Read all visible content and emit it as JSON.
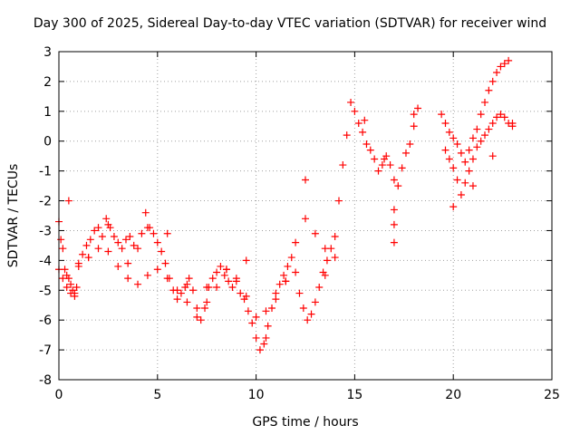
{
  "chart_data": {
    "type": "scatter",
    "title": "Day 300 of 2025, Sidereal Day-to-day VTEC variation (SDTVAR) for receiver wind",
    "xlabel": "GPS time / hours",
    "ylabel": "SDTVAR / TECUs",
    "xlim": [
      0,
      25
    ],
    "ylim": [
      -8,
      3
    ],
    "xticks": [
      0,
      5,
      10,
      15,
      20,
      25
    ],
    "yticks": [
      -8,
      -7,
      -6,
      -5,
      -4,
      -3,
      -2,
      -1,
      0,
      1,
      2,
      3
    ],
    "grid": true,
    "marker": "plus",
    "marker_color": "#ff0000",
    "series": [
      {
        "name": "SDTVAR",
        "x": [
          0.0,
          0.1,
          0.2,
          0.3,
          0.4,
          0.5,
          0.6,
          0.7,
          0.8,
          0.9,
          1.0,
          1.2,
          1.4,
          1.6,
          1.8,
          2.0,
          2.2,
          2.4,
          2.6,
          2.8,
          3.0,
          3.2,
          3.4,
          3.6,
          3.8,
          4.0,
          4.2,
          4.4,
          4.6,
          4.8,
          5.0,
          5.2,
          5.4,
          5.6,
          5.8,
          6.0,
          6.2,
          6.4,
          6.6,
          6.8,
          7.0,
          7.2,
          7.4,
          7.6,
          7.8,
          8.0,
          8.2,
          8.4,
          8.6,
          8.8,
          9.0,
          9.2,
          9.4,
          9.6,
          9.8,
          10.0,
          10.2,
          10.4,
          10.6,
          10.8,
          11.0,
          11.2,
          11.4,
          11.6,
          11.8,
          12.0,
          12.2,
          12.4,
          12.6,
          12.8,
          13.0,
          13.2,
          13.4,
          13.6,
          13.8,
          14.0,
          14.2,
          14.4,
          14.6,
          14.8,
          15.0,
          15.2,
          15.4,
          15.6,
          15.8,
          16.0,
          16.2,
          16.4,
          16.6,
          16.8,
          17.0,
          17.2,
          17.4,
          17.6,
          17.8,
          18.0,
          18.2,
          19.4,
          19.6,
          19.8,
          20.0,
          20.2,
          20.4,
          20.6,
          20.8,
          21.0,
          21.2,
          21.4,
          21.6,
          21.8,
          22.0,
          22.2,
          22.4,
          22.6,
          22.8,
          23.0,
          0.0,
          0.2,
          0.4,
          0.6,
          0.8,
          1.0,
          1.5,
          2.0,
          2.5,
          3.0,
          3.5,
          4.0,
          4.5,
          5.0,
          5.5,
          6.0,
          6.5,
          7.0,
          7.5,
          8.0,
          8.5,
          9.0,
          9.5,
          10.0,
          10.5,
          11.0,
          11.5,
          12.0,
          12.5,
          13.0,
          13.5,
          14.0,
          19.6,
          19.8,
          20.0,
          20.2,
          20.4,
          20.6,
          20.8,
          21.0,
          21.2,
          21.4,
          21.6,
          21.8,
          22.0,
          22.2,
          22.4,
          22.6,
          22.8,
          23.0,
          0.5,
          1.5,
          2.5,
          3.5,
          4.5,
          5.5,
          6.5,
          7.5,
          8.5,
          9.5,
          10.5,
          11.5,
          12.5,
          13.5,
          15.5,
          16.5,
          17.0,
          17.0,
          17.0,
          18.0,
          20.0,
          21.0,
          22.0
        ],
        "y": [
          -2.7,
          -3.3,
          -3.6,
          -4.3,
          -4.5,
          -4.6,
          -4.8,
          -5.0,
          -5.1,
          -4.9,
          -4.1,
          -3.8,
          -3.5,
          -3.3,
          -3.0,
          -2.9,
          -3.2,
          -2.6,
          -2.9,
          -3.2,
          -3.4,
          -3.6,
          -3.3,
          -3.2,
          -3.5,
          -3.6,
          -3.1,
          -2.4,
          -2.9,
          -3.1,
          -3.4,
          -3.7,
          -4.1,
          -4.6,
          -5.0,
          -5.3,
          -5.1,
          -4.9,
          -4.6,
          -5.0,
          -5.6,
          -6.0,
          -5.6,
          -4.9,
          -4.6,
          -4.4,
          -4.2,
          -4.5,
          -4.7,
          -4.9,
          -4.7,
          -5.1,
          -5.3,
          -5.7,
          -6.1,
          -6.6,
          -7.0,
          -6.8,
          -6.2,
          -5.6,
          -5.1,
          -4.8,
          -4.5,
          -4.2,
          -3.9,
          -4.4,
          -5.1,
          -5.6,
          -6.0,
          -5.8,
          -5.4,
          -4.9,
          -4.4,
          -4.0,
          -3.6,
          -3.2,
          -2.0,
          -0.8,
          0.2,
          1.3,
          1.0,
          0.6,
          0.3,
          -0.1,
          -0.3,
          -0.6,
          -1.0,
          -0.8,
          -0.5,
          -0.8,
          -1.3,
          -1.5,
          -0.9,
          -0.4,
          -0.1,
          0.5,
          1.1,
          0.9,
          0.6,
          0.3,
          0.1,
          -0.1,
          -0.4,
          -0.7,
          -0.3,
          0.1,
          0.4,
          0.9,
          1.3,
          1.7,
          2.0,
          2.3,
          2.5,
          2.6,
          2.7,
          0.6,
          -4.3,
          -4.6,
          -4.9,
          -5.1,
          -5.2,
          -4.2,
          -3.9,
          -3.6,
          -3.7,
          -4.2,
          -4.6,
          -4.8,
          -4.5,
          -4.3,
          -4.6,
          -5.0,
          -5.4,
          -5.9,
          -5.4,
          -4.9,
          -4.3,
          -4.6,
          -5.2,
          -5.9,
          -6.6,
          -5.3,
          -4.7,
          -3.4,
          -2.6,
          -3.1,
          -3.6,
          -3.9,
          -0.3,
          -0.6,
          -0.9,
          -1.3,
          -1.8,
          -1.4,
          -1.0,
          -0.6,
          -0.2,
          0.0,
          0.2,
          0.4,
          0.6,
          0.8,
          0.9,
          0.8,
          0.6,
          0.5,
          -2.0,
          -3.9,
          -2.8,
          -4.1,
          -2.9,
          -3.1,
          -4.8,
          -4.9,
          -4.3,
          -4.0,
          -5.7,
          -4.7,
          -1.3,
          -4.5,
          0.7,
          -0.6,
          -2.3,
          -2.8,
          -3.4,
          0.9,
          -2.2,
          -1.5,
          -0.5
        ]
      }
    ]
  }
}
